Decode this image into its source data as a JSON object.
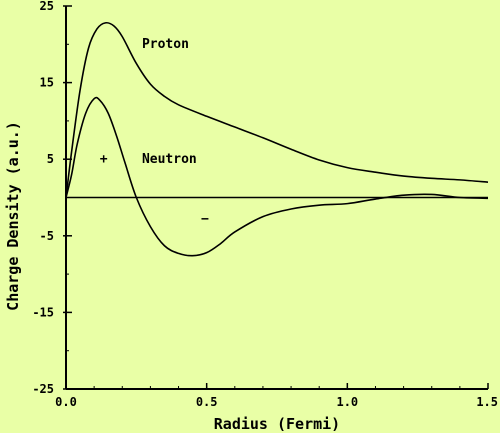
{
  "chart_data": {
    "type": "line",
    "xlabel": "Radius (Fermi)",
    "ylabel": "Charge Density (a.u.)",
    "xlim": [
      0.0,
      1.5
    ],
    "ylim": [
      -25,
      25
    ],
    "xticks": [
      "0.0",
      "0.5",
      "1.0",
      "1.5"
    ],
    "yticks": [
      "25",
      "15",
      "5",
      "-5",
      "-15",
      "-25"
    ],
    "grid": false,
    "colors": {
      "background": "#e9ffa6",
      "line": "#000000"
    },
    "series": [
      {
        "name": "Proton",
        "x": [
          0.0,
          0.02,
          0.05,
          0.08,
          0.11,
          0.14,
          0.17,
          0.2,
          0.25,
          0.3,
          0.35,
          0.4,
          0.5,
          0.6,
          0.7,
          0.8,
          0.9,
          1.0,
          1.1,
          1.2,
          1.3,
          1.4,
          1.5
        ],
        "y": [
          0.0,
          6.0,
          14.0,
          19.5,
          22.0,
          22.8,
          22.4,
          21.0,
          17.5,
          14.8,
          13.2,
          12.1,
          10.6,
          9.2,
          7.8,
          6.3,
          4.9,
          3.9,
          3.3,
          2.8,
          2.5,
          2.3,
          2.0
        ]
      },
      {
        "name": "Neutron",
        "x": [
          0.0,
          0.02,
          0.04,
          0.07,
          0.1,
          0.12,
          0.15,
          0.18,
          0.21,
          0.25,
          0.3,
          0.35,
          0.4,
          0.45,
          0.5,
          0.55,
          0.6,
          0.7,
          0.8,
          0.9,
          1.0,
          1.1,
          1.2,
          1.3,
          1.4,
          1.5
        ],
        "y": [
          0.0,
          3.0,
          7.0,
          11.0,
          12.9,
          12.7,
          11.0,
          8.0,
          4.5,
          0.0,
          -3.8,
          -6.3,
          -7.3,
          -7.6,
          -7.2,
          -6.0,
          -4.5,
          -2.5,
          -1.5,
          -1.0,
          -0.8,
          -0.2,
          0.3,
          0.4,
          0.0,
          -0.1
        ]
      },
      {
        "name": "zero",
        "x": [
          0.0,
          1.5
        ],
        "y": [
          0.0,
          0.0
        ]
      }
    ],
    "annotations": [
      {
        "text": "Proton",
        "x": 0.27,
        "y": 19.5
      },
      {
        "text": "Neutron",
        "x": 0.27,
        "y": 4.5
      },
      {
        "text": "+",
        "x": 0.12,
        "y": 4.5
      },
      {
        "text": "−",
        "x": 0.48,
        "y": -3.3
      }
    ]
  }
}
